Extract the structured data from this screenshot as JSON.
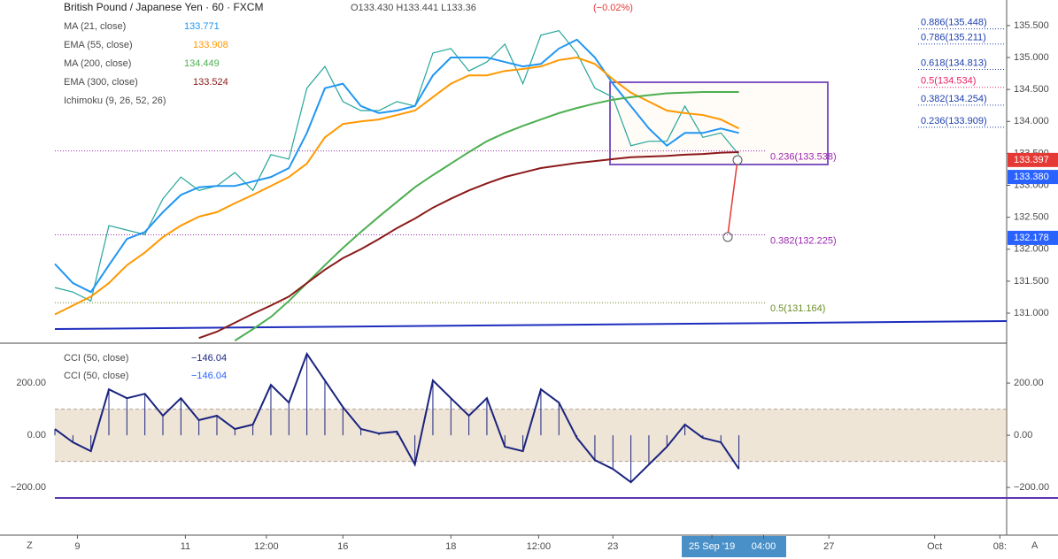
{
  "header": {
    "title": "British Pound / Japanese Yen · 60 · FXCM",
    "ohlc": "O133.430 H133.441 L133.36",
    "change": "(−0.02%)",
    "ichimoku": "Ichimoku (9, 26, 52, 26)",
    "corner_left": "Z",
    "corner_right": "A"
  },
  "chart_data": [
    {
      "type": "line",
      "xlim": [
        0,
        423
      ],
      "ylim": [
        130.53,
        135.9
      ],
      "x": [
        0,
        8,
        16,
        24,
        32,
        40,
        48,
        56,
        64,
        72,
        80,
        88,
        96,
        104,
        112,
        120,
        128,
        136,
        144,
        152,
        160,
        168,
        176,
        184,
        192,
        200,
        208,
        216,
        224,
        232,
        240,
        248,
        256,
        264,
        272,
        280,
        288,
        296,
        304
      ],
      "close": [
        131.4,
        131.33,
        131.19,
        132.37,
        132.3,
        132.23,
        132.79,
        133.13,
        132.92,
        132.99,
        133.2,
        132.92,
        133.48,
        133.41,
        134.52,
        134.86,
        134.31,
        134.17,
        134.17,
        134.31,
        134.24,
        135.07,
        135.14,
        134.79,
        134.93,
        135.21,
        134.59,
        135.35,
        135.42,
        135.07,
        134.52,
        134.38,
        133.62,
        133.69,
        133.69,
        134.24,
        133.75,
        133.82,
        133.48
      ],
      "close_color": "#26a69a",
      "series": [
        {
          "name": "MA (21, close)",
          "color": "#2196f3",
          "last": "133.771",
          "values": [
            131.77,
            131.47,
            131.33,
            131.75,
            132.16,
            132.27,
            132.58,
            132.85,
            132.97,
            132.99,
            132.99,
            133.06,
            133.13,
            133.27,
            133.82,
            134.52,
            134.59,
            134.24,
            134.13,
            134.17,
            134.24,
            134.72,
            135.0,
            135.0,
            135.0,
            134.93,
            134.86,
            134.9,
            135.14,
            135.28,
            135.0,
            134.59,
            134.24,
            133.89,
            133.62,
            133.82,
            133.82,
            133.89,
            133.82
          ]
        },
        {
          "name": "EMA (55, close)",
          "color": "#ff9800",
          "last": "133.908",
          "values": [
            130.98,
            131.12,
            131.26,
            131.47,
            131.75,
            131.95,
            132.19,
            132.37,
            132.51,
            132.58,
            132.72,
            132.85,
            132.99,
            133.13,
            133.34,
            133.75,
            133.96,
            134.0,
            134.03,
            134.1,
            134.17,
            134.38,
            134.59,
            134.72,
            134.72,
            134.79,
            134.82,
            134.86,
            134.96,
            135.0,
            134.9,
            134.66,
            134.45,
            134.31,
            134.17,
            134.13,
            134.1,
            134.03,
            133.89
          ]
        },
        {
          "name": "MA (200, close)",
          "color": "#4caf50",
          "last": "134.449",
          "values": [
            null,
            null,
            null,
            null,
            null,
            null,
            null,
            null,
            null,
            null,
            130.57,
            130.75,
            130.94,
            131.19,
            131.47,
            131.75,
            132.02,
            132.27,
            132.51,
            132.74,
            132.97,
            133.16,
            133.34,
            133.52,
            133.69,
            133.82,
            133.93,
            134.03,
            134.13,
            134.21,
            134.28,
            134.34,
            134.38,
            134.41,
            134.44,
            134.45,
            134.46,
            134.46,
            134.46
          ]
        },
        {
          "name": "EMA (300, close)",
          "color": "#8b1a1a",
          "last": "133.524",
          "values": [
            null,
            null,
            null,
            null,
            null,
            null,
            null,
            null,
            130.61,
            130.71,
            130.85,
            130.99,
            131.12,
            131.26,
            131.47,
            131.68,
            131.86,
            132.0,
            132.16,
            132.33,
            132.48,
            132.65,
            132.79,
            132.92,
            133.03,
            133.13,
            133.2,
            133.27,
            133.31,
            133.35,
            133.38,
            133.41,
            133.44,
            133.45,
            133.46,
            133.48,
            133.49,
            133.51,
            133.52
          ]
        }
      ],
      "yticks": [
        {
          "value": 131,
          "label": "131.000"
        },
        {
          "value": 131.5,
          "label": "131.500"
        },
        {
          "value": 132,
          "label": "132.000"
        },
        {
          "value": 132.5,
          "label": "132.500"
        },
        {
          "value": 133,
          "label": "133.000"
        },
        {
          "value": 133.5,
          "label": "133.500"
        },
        {
          "value": 134,
          "label": "134.000"
        },
        {
          "value": 134.5,
          "label": "134.500"
        },
        {
          "value": 135,
          "label": "135.000"
        },
        {
          "value": 135.5,
          "label": "135.500"
        }
      ],
      "fib": [
        {
          "label": "0.886(135.448)",
          "value": 135.448,
          "color": "#1e40af"
        },
        {
          "label": "0.786(135.211)",
          "value": 135.211,
          "color": "#1e40af"
        },
        {
          "label": "0.618(134.813)",
          "value": 134.813,
          "color": "#1e40af"
        },
        {
          "label": "0.5(134.534)",
          "value": 134.534,
          "color": "#e91e63"
        },
        {
          "label": "0.382(134.254)",
          "value": 134.254,
          "color": "#1e40af"
        },
        {
          "label": "0.236(133.909)",
          "value": 133.909,
          "color": "#1e40af"
        },
        {
          "label": "0.236(133.538)",
          "value": 133.538,
          "color": "#9c27b0"
        },
        {
          "label": "0.382(132.225)",
          "value": 132.225,
          "color": "#9c27b0"
        },
        {
          "label": "0.5(131.164)",
          "value": 131.164,
          "color": "#6b8e23"
        }
      ],
      "price_tags": [
        {
          "value": 133.397,
          "color": "#e53935"
        },
        {
          "value": 133.38,
          "label": "133.380",
          "color": "#2962ff"
        },
        {
          "value": 132.178,
          "color": "#2962ff"
        }
      ]
    },
    {
      "type": "line",
      "ylim": [
        -247,
        346
      ],
      "band": [
        -100,
        100
      ],
      "series": [
        {
          "name": "CCI (50, close)",
          "color": "#1a237e",
          "last": "−146.04",
          "values": [
            24,
            -27,
            -61,
            176,
            142,
            159,
            75,
            142,
            58,
            75,
            24,
            41,
            193,
            125,
            312,
            210,
            108,
            24,
            7,
            14,
            -112,
            210,
            142,
            75,
            142,
            -44,
            -61,
            176,
            125,
            -10,
            -95,
            -129,
            -180,
            -112,
            -44,
            41,
            -10,
            -27,
            -129
          ]
        },
        {
          "name": "CCI (50, close)",
          "color": "#2962ff",
          "last": "−146.04",
          "values": []
        }
      ],
      "yticks": [
        {
          "value": 200,
          "label": "200.00"
        },
        {
          "value": 0,
          "label": "0.00"
        },
        {
          "value": -200,
          "label": "−200.00"
        }
      ]
    }
  ],
  "xticks": [
    {
      "value": 10,
      "label": "9"
    },
    {
      "value": 58,
      "label": "11"
    },
    {
      "value": 94,
      "label": "12:00"
    },
    {
      "value": 128,
      "label": "16"
    },
    {
      "value": 176,
      "label": "18"
    },
    {
      "value": 215,
      "label": "12:00"
    },
    {
      "value": 248,
      "label": "23"
    },
    {
      "value": 292,
      "label": "25 Sep '19"
    },
    {
      "value": 315,
      "label": "04:00"
    },
    {
      "value": 344,
      "label": "27"
    },
    {
      "value": 391,
      "label": "Oct"
    },
    {
      "value": 420,
      "label": "08:"
    }
  ]
}
